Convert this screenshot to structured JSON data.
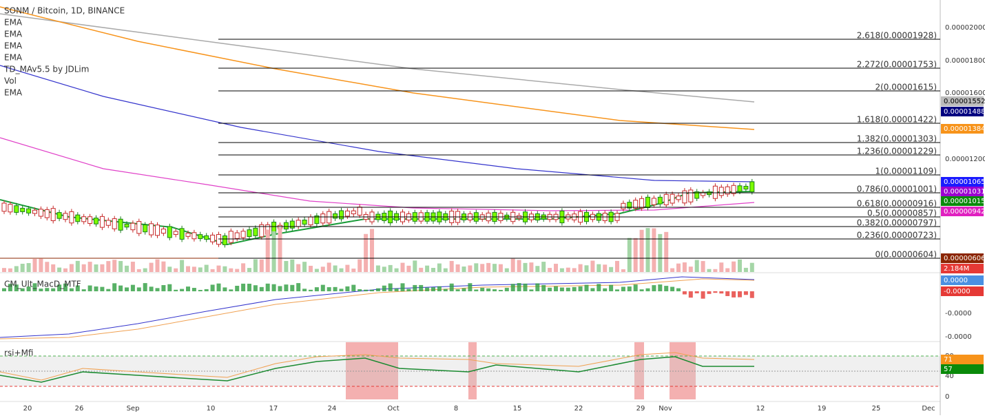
{
  "header": {
    "symbol": "SONM / Bitcoin, 1D, BINANCE",
    "indicators": [
      "EMA",
      "EMA",
      "EMA",
      "EMA",
      "TD_MAv5.5 by JDLim",
      "Vol",
      "EMA"
    ]
  },
  "fib_levels": [
    "2.618(0.00001928)",
    "2.272(0.00001753)",
    "2(0.00001615)",
    "1.618(0.00001422)",
    "1.382(0.00001303)",
    "1.236(0.00001229)",
    "1(0.00001109)",
    "0.786(0.00001001)",
    "0.618(0.00000916)",
    "0.5(0.00000857)",
    "0.382(0.00000797)",
    "0.236(0.00000723)",
    "0(0.00000604)"
  ],
  "price_axis": {
    "ticks": [
      "0.00002000",
      "0.00001800",
      "0.00001600",
      "0.00001200"
    ],
    "badges": [
      "0.00001552",
      "0.00001488",
      "0.00001384",
      "0.00001065",
      "0.00001031",
      "0.00001015",
      "0.00000942",
      "0.00000606",
      "2.184M"
    ]
  },
  "macd": {
    "title": "CM_Ult_MacD_MTF",
    "badges": [
      "0.0000",
      "-0.0000"
    ],
    "ticks": [
      "-0.0000",
      "-0.0000"
    ]
  },
  "rsi": {
    "title": "rsi+Mfi",
    "ticks": [
      "80",
      "40",
      "0"
    ],
    "badges": [
      "71",
      "57"
    ]
  },
  "time_axis": [
    "20",
    "26",
    "Sep",
    "10",
    "17",
    "24",
    "Oct",
    "8",
    "15",
    "22",
    "29",
    "Nov",
    "12",
    "19",
    "25",
    "Dec"
  ]
}
